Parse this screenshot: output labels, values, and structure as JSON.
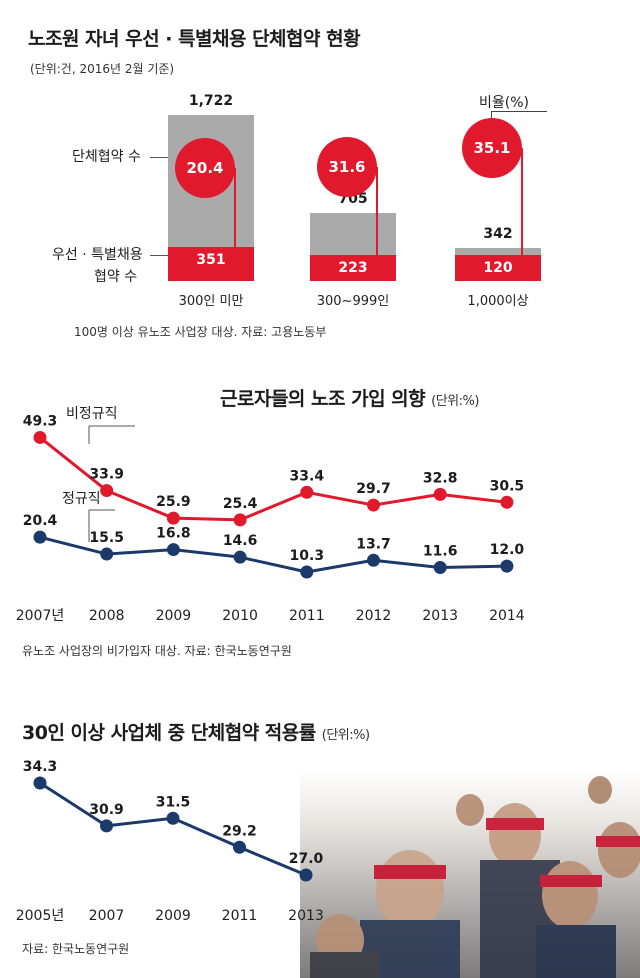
{
  "section1": {
    "title": "노조원 자녀 우선 · 특별채용 단체협약 현황",
    "unit_note": "(단위:건, 2016년 2월 기준)",
    "label_total": "단체협약 수",
    "label_special_line1": "우선 · 특별채용",
    "label_special_line2": "협약 수",
    "ratio_label": "비율(%)",
    "source": "100명 이상 유노조 사업장 대상. 자료: 고용노동부"
  },
  "section2": {
    "title": "근로자들의 노조 가입 의향",
    "unit": "(단위:%)",
    "source": "유노조 사업장의 비가입자 대상. 자료: 한국노동연구원"
  },
  "section3": {
    "title": "30인 이상 사업체 중 단체협약 적용률",
    "unit": "(단위:%)",
    "source": "자료: 한국노동연구원"
  },
  "chart_data": [
    {
      "type": "bar",
      "title": "노조원 자녀 우선 · 특별채용 단체협약 현황",
      "categories": [
        "300인 미만",
        "300~999인",
        "1,000이상"
      ],
      "series": [
        {
          "name": "단체협약 수",
          "values": [
            1722,
            705,
            342
          ]
        },
        {
          "name": "우선 · 특별채용 협약 수",
          "values": [
            351,
            223,
            120
          ]
        },
        {
          "name": "비율(%)",
          "values": [
            20.4,
            31.6,
            35.1
          ]
        }
      ],
      "value_labels": {
        "totals": [
          "1,722",
          "705",
          "342"
        ],
        "special": [
          "351",
          "223",
          "120"
        ],
        "ratio": [
          "20.4",
          "31.6",
          "35.1"
        ]
      },
      "colors": {
        "total": "#aaaaaa",
        "special": "#e0192c",
        "ratio": "#e0192c"
      }
    },
    {
      "type": "line",
      "title": "근로자들의 노조 가입 의향",
      "x": [
        "2007년",
        "2008",
        "2009",
        "2010",
        "2011",
        "2012",
        "2013",
        "2014"
      ],
      "series": [
        {
          "name": "비정규직",
          "values": [
            49.3,
            33.9,
            25.9,
            25.4,
            33.4,
            29.7,
            32.8,
            30.5
          ],
          "labels": [
            "49.3",
            "33.9",
            "25.9",
            "25.4",
            "33.4",
            "29.7",
            "32.8",
            "30.5"
          ],
          "color": "#e0192c"
        },
        {
          "name": "정규직",
          "values": [
            20.4,
            15.5,
            16.8,
            14.6,
            10.3,
            13.7,
            11.6,
            12.0
          ],
          "labels": [
            "20.4",
            "15.5",
            "16.8",
            "14.6",
            "10.3",
            "13.7",
            "11.6",
            "12.0"
          ],
          "color": "#1b3a6b"
        }
      ]
    },
    {
      "type": "line",
      "title": "30인 이상 사업체 중 단체협약 적용률",
      "x": [
        "2005년",
        "2007",
        "2009",
        "2011",
        "2013"
      ],
      "series": [
        {
          "values": [
            34.3,
            30.9,
            31.5,
            29.2,
            27.0
          ],
          "labels": [
            "34.3",
            "30.9",
            "31.5",
            "29.2",
            "27.0"
          ],
          "color": "#1b3a6b"
        }
      ]
    }
  ]
}
